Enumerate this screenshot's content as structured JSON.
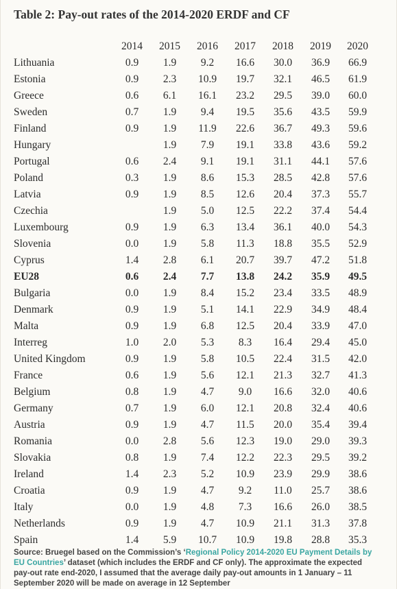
{
  "document": {
    "title": "Table 2: Pay-out rates of the 2014-2020 ERDF and CF"
  },
  "table": {
    "columns": [
      "2014",
      "2015",
      "2016",
      "2017",
      "2018",
      "2019",
      "2020"
    ],
    "rows": [
      {
        "name": "Lithuania",
        "values": [
          "0.9",
          "1.9",
          "9.2",
          "16.6",
          "30.0",
          "36.9",
          "66.9"
        ],
        "bold": false
      },
      {
        "name": "Estonia",
        "values": [
          "0.9",
          "2.3",
          "10.9",
          "19.7",
          "32.1",
          "46.5",
          "61.9"
        ],
        "bold": false
      },
      {
        "name": "Greece",
        "values": [
          "0.6",
          "6.1",
          "16.1",
          "23.2",
          "29.5",
          "39.0",
          "60.0"
        ],
        "bold": false
      },
      {
        "name": "Sweden",
        "values": [
          "0.7",
          "1.9",
          "9.4",
          "19.5",
          "35.6",
          "43.5",
          "59.9"
        ],
        "bold": false
      },
      {
        "name": "Finland",
        "values": [
          "0.9",
          "1.9",
          "11.9",
          "22.6",
          "36.7",
          "49.3",
          "59.6"
        ],
        "bold": false
      },
      {
        "name": "Hungary",
        "values": [
          "",
          "1.9",
          "7.9",
          "19.1",
          "33.8",
          "43.6",
          "59.2"
        ],
        "bold": false
      },
      {
        "name": "Portugal",
        "values": [
          "0.6",
          "2.4",
          "9.1",
          "19.1",
          "31.1",
          "44.1",
          "57.6"
        ],
        "bold": false
      },
      {
        "name": "Poland",
        "values": [
          "0.3",
          "1.9",
          "8.6",
          "15.3",
          "28.5",
          "42.8",
          "57.6"
        ],
        "bold": false
      },
      {
        "name": "Latvia",
        "values": [
          "0.9",
          "1.9",
          "8.5",
          "12.6",
          "20.4",
          "37.3",
          "55.7"
        ],
        "bold": false
      },
      {
        "name": "Czechia",
        "values": [
          "",
          "1.9",
          "5.0",
          "12.5",
          "22.2",
          "37.4",
          "54.4"
        ],
        "bold": false
      },
      {
        "name": "Luxembourg",
        "values": [
          "0.9",
          "1.9",
          "6.3",
          "13.4",
          "36.1",
          "40.0",
          "54.3"
        ],
        "bold": false
      },
      {
        "name": "Slovenia",
        "values": [
          "0.0",
          "1.9",
          "5.8",
          "11.3",
          "18.8",
          "35.5",
          "52.9"
        ],
        "bold": false
      },
      {
        "name": "Cyprus",
        "values": [
          "1.4",
          "2.8",
          "6.1",
          "20.7",
          "39.7",
          "47.2",
          "51.8"
        ],
        "bold": false
      },
      {
        "name": "EU28",
        "values": [
          "0.6",
          "2.4",
          "7.7",
          "13.8",
          "24.2",
          "35.9",
          "49.5"
        ],
        "bold": true
      },
      {
        "name": "Bulgaria",
        "values": [
          "0.0",
          "1.9",
          "8.4",
          "15.2",
          "23.4",
          "33.5",
          "48.9"
        ],
        "bold": false
      },
      {
        "name": "Denmark",
        "values": [
          "0.9",
          "1.9",
          "5.1",
          "14.1",
          "22.9",
          "34.9",
          "48.4"
        ],
        "bold": false
      },
      {
        "name": "Malta",
        "values": [
          "0.9",
          "1.9",
          "6.8",
          "12.5",
          "20.4",
          "33.9",
          "47.0"
        ],
        "bold": false
      },
      {
        "name": "Interreg",
        "values": [
          "1.0",
          "2.0",
          "5.3",
          "8.3",
          "16.4",
          "29.4",
          "45.0"
        ],
        "bold": false
      },
      {
        "name": "United Kingdom",
        "values": [
          "0.9",
          "1.9",
          "5.8",
          "10.5",
          "22.4",
          "31.5",
          "42.0"
        ],
        "bold": false
      },
      {
        "name": "France",
        "values": [
          "0.6",
          "1.9",
          "5.6",
          "12.1",
          "21.3",
          "32.7",
          "41.3"
        ],
        "bold": false
      },
      {
        "name": "Belgium",
        "values": [
          "0.8",
          "1.9",
          "4.7",
          "9.0",
          "16.6",
          "32.0",
          "40.6"
        ],
        "bold": false
      },
      {
        "name": "Germany",
        "values": [
          "0.7",
          "1.9",
          "6.0",
          "12.1",
          "20.8",
          "32.4",
          "40.6"
        ],
        "bold": false
      },
      {
        "name": "Austria",
        "values": [
          "0.9",
          "1.9",
          "4.7",
          "11.5",
          "20.0",
          "35.4",
          "39.4"
        ],
        "bold": false
      },
      {
        "name": "Romania",
        "values": [
          "0.0",
          "2.8",
          "5.6",
          "12.3",
          "19.0",
          "29.0",
          "39.3"
        ],
        "bold": false
      },
      {
        "name": "Slovakia",
        "values": [
          "0.8",
          "1.9",
          "7.4",
          "12.2",
          "22.3",
          "29.5",
          "39.2"
        ],
        "bold": false
      },
      {
        "name": "Ireland",
        "values": [
          "1.4",
          "2.3",
          "5.2",
          "10.9",
          "23.9",
          "29.9",
          "38.6"
        ],
        "bold": false
      },
      {
        "name": "Croatia",
        "values": [
          "0.9",
          "1.9",
          "4.7",
          "9.2",
          "11.0",
          "25.7",
          "38.6"
        ],
        "bold": false
      },
      {
        "name": "Italy",
        "values": [
          "0.0",
          "1.9",
          "4.8",
          "7.3",
          "16.6",
          "26.0",
          "38.5"
        ],
        "bold": false
      },
      {
        "name": "Netherlands",
        "values": [
          "0.9",
          "1.9",
          "4.7",
          "10.9",
          "21.1",
          "31.3",
          "37.8"
        ],
        "bold": false
      },
      {
        "name": "Spain",
        "values": [
          "1.4",
          "5.9",
          "10.7",
          "10.9",
          "19.8",
          "28.8",
          "35.3"
        ],
        "bold": false
      }
    ]
  },
  "source": {
    "prefix": "Source: Bruegel based on the Commission’s ‘",
    "link_text": "Regional Policy 2014-2020 EU Payment Details by EU Countries",
    "suffix": "’ dataset (which includes the ERDF and CF only). The approximate the expected pay-out rate end-2020, I assumed that the average daily pay-out amounts in 1 January – 11 September 2020 will be made on average in 12 September"
  },
  "colors": {
    "background": "#fbfaf6",
    "text": "#2b2b2b",
    "link": "#3aa6a2"
  }
}
